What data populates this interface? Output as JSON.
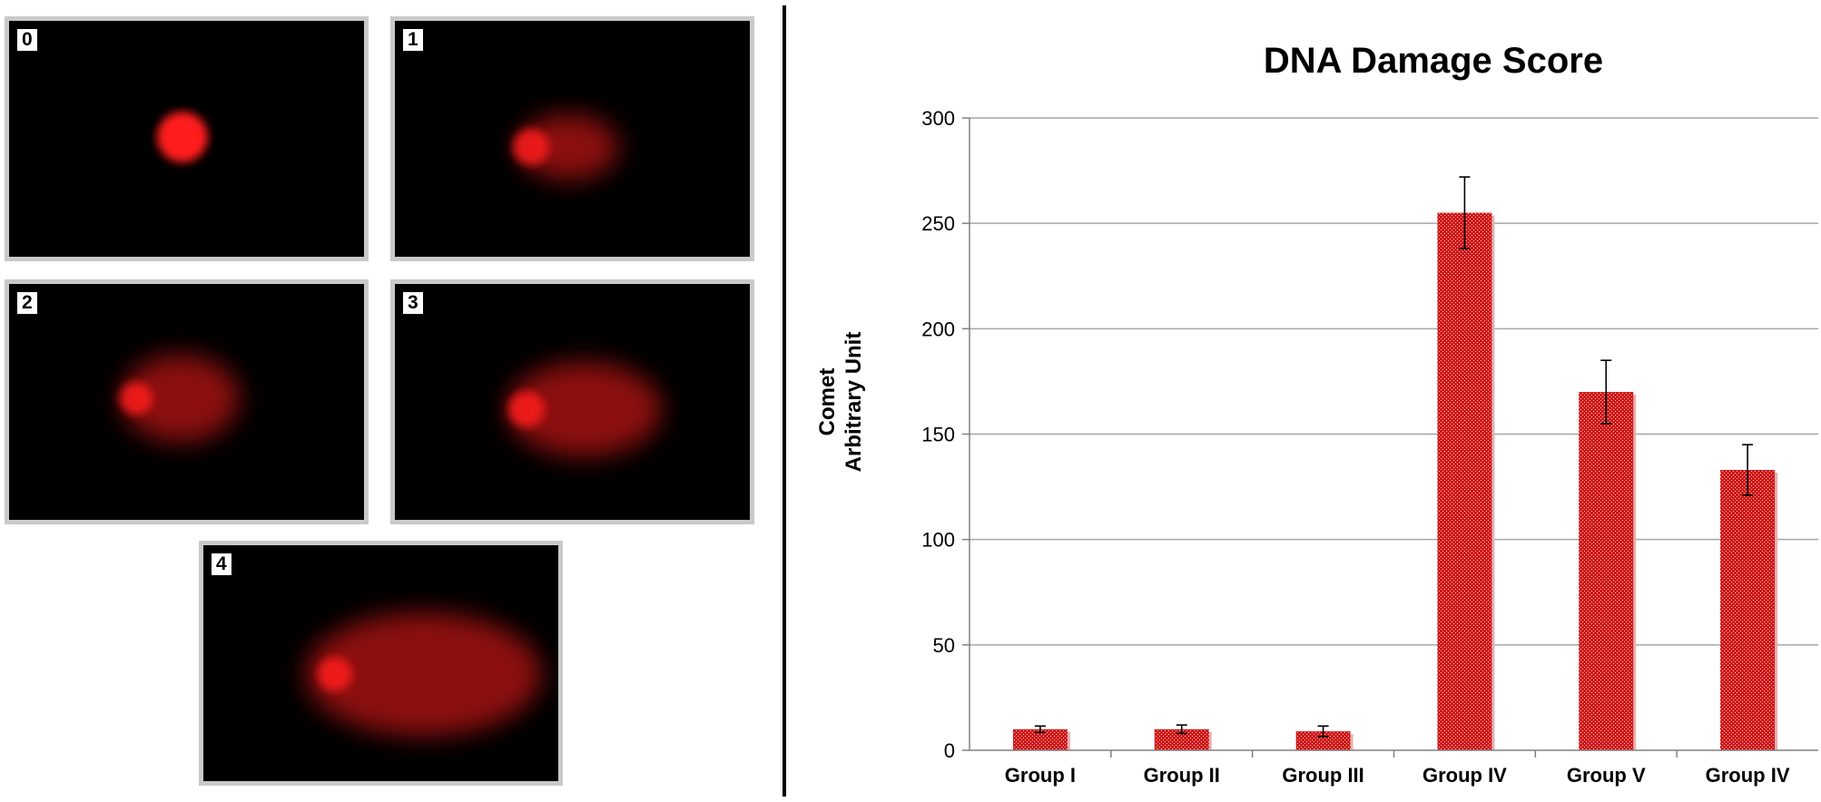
{
  "colors": {
    "bar": "#d01818",
    "bar_stipple": "#f4c2c2",
    "comet": "#ff1a1a",
    "panel_border": "#c9c9c9",
    "grid": "#a6a6a6"
  },
  "comet_panels": [
    {
      "label": "0",
      "tail": 0
    },
    {
      "label": "1",
      "tail": 1
    },
    {
      "label": "2",
      "tail": 2
    },
    {
      "label": "3",
      "tail": 3
    },
    {
      "label": "4",
      "tail": 4
    }
  ],
  "chart_data": {
    "type": "bar",
    "title": "DNA Damage Score",
    "ylabel_line1": "Comet",
    "ylabel_line2": "Arbitrary Unit",
    "xlabel": "",
    "categories": [
      "Group I",
      "Group II",
      "Group III",
      "Group IV",
      "Group V",
      "Group IV"
    ],
    "values": [
      10,
      10,
      9,
      255,
      170,
      133
    ],
    "errors": [
      1.5,
      2,
      2.5,
      17,
      15,
      12
    ],
    "ylim": [
      0,
      300
    ],
    "yticks": [
      0,
      50,
      100,
      150,
      200,
      250,
      300
    ],
    "grid": true,
    "legend": "none"
  }
}
